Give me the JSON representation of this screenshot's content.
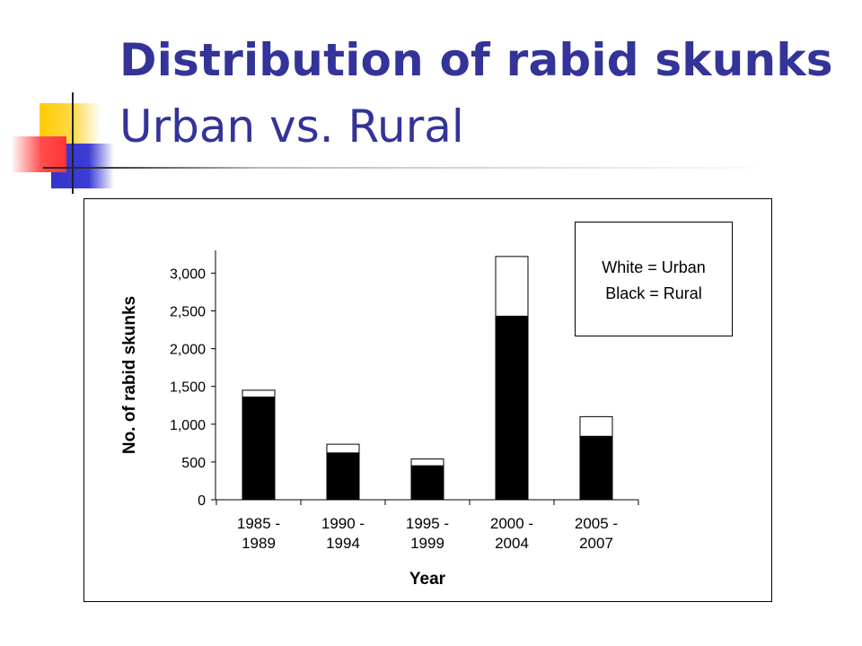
{
  "slide": {
    "title_bold": "Distribution of rabid skunks",
    "title_sub": "Urban vs. Rural"
  },
  "legend": {
    "urban": "White = Urban",
    "rural": "Black = Rural"
  },
  "colors": {
    "title": "#333399",
    "urban": "#ffffff",
    "rural": "#000000"
  },
  "chart_data": {
    "type": "bar",
    "stacked": true,
    "categories": [
      [
        "1985 -",
        "1989"
      ],
      [
        "1990 -",
        "1994"
      ],
      [
        "1995 -",
        "1999"
      ],
      [
        "2000 -",
        "2004"
      ],
      [
        "2005 -",
        "2007"
      ]
    ],
    "series": [
      {
        "name": "Rural",
        "color": "#000000",
        "values": [
          1360,
          620,
          450,
          2430,
          840
        ]
      },
      {
        "name": "Urban",
        "color": "#ffffff",
        "values": [
          90,
          115,
          90,
          790,
          260
        ]
      }
    ],
    "xlabel": "Year",
    "ylabel": "No. of rabid skunks",
    "ylim": [
      0,
      3300
    ],
    "yticks": [
      0,
      500,
      1000,
      1500,
      2000,
      2500,
      3000
    ],
    "ytick_labels": [
      "0",
      "500",
      "1,000",
      "1,500",
      "2,000",
      "2,500",
      "3,000"
    ],
    "grid": false,
    "legend_position": "top-right"
  }
}
